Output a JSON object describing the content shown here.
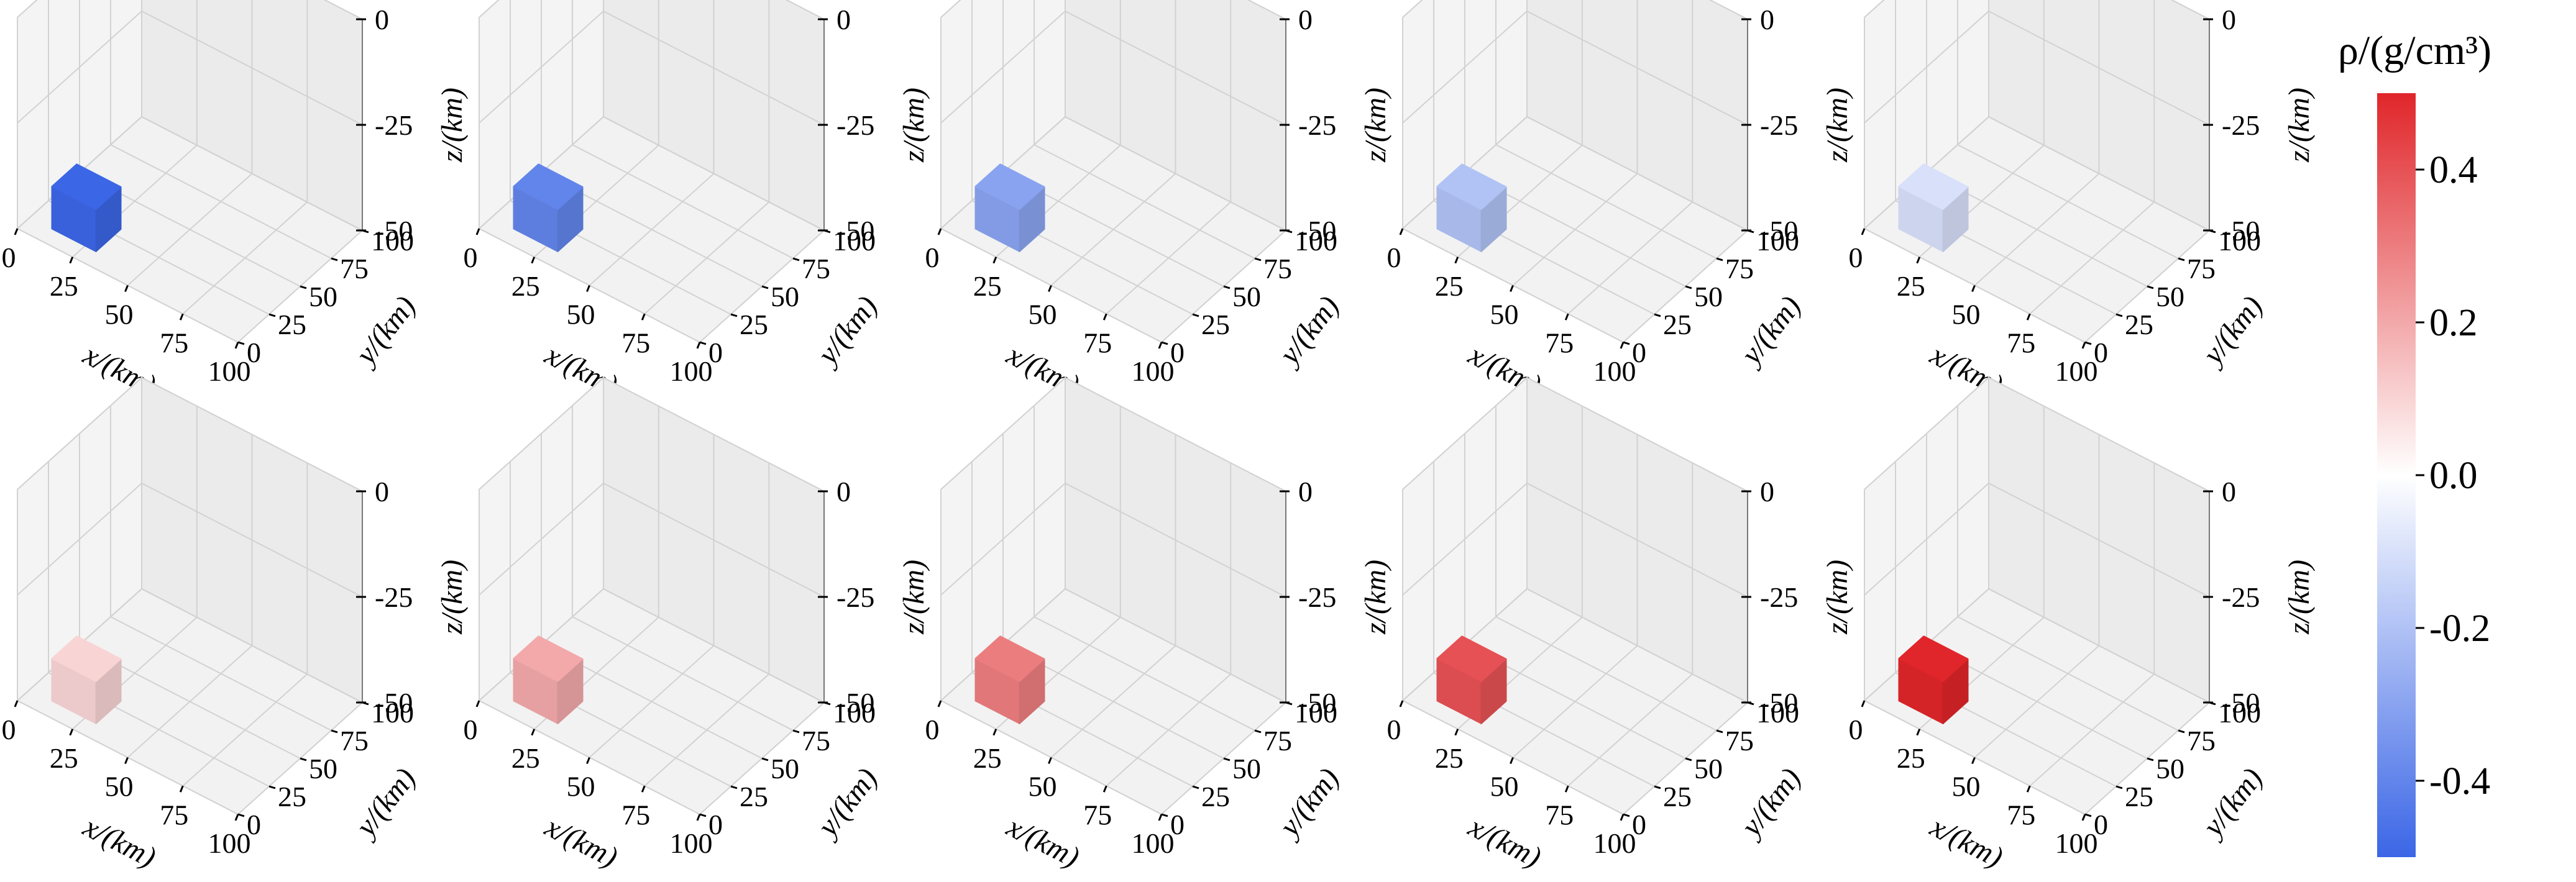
{
  "chart_data": {
    "type": "3d-voxel-panels",
    "description_note": "10 panels of a single cubic density block; same geometry, varying density value",
    "axes": {
      "xlabel": "x/(km)",
      "ylabel": "y/(km)",
      "zlabel": "z/(km)",
      "x_ticks": [
        "0",
        "25",
        "50",
        "75",
        "100"
      ],
      "y_ticks": [
        "0",
        "25",
        "50",
        "75",
        "100"
      ],
      "z_ticks": [
        "0",
        "-25",
        "-50"
      ],
      "xlim": [
        0,
        100
      ],
      "ylim": [
        0,
        100
      ],
      "zlim": [
        -50,
        0
      ]
    },
    "block": {
      "x": [
        10,
        30
      ],
      "y": [
        10,
        30
      ],
      "z": [
        -50,
        -40
      ]
    },
    "panels": [
      {
        "row": 1,
        "col": 1,
        "density": -0.5
      },
      {
        "row": 1,
        "col": 2,
        "density": -0.4
      },
      {
        "row": 1,
        "col": 3,
        "density": -0.3
      },
      {
        "row": 1,
        "col": 4,
        "density": -0.2
      },
      {
        "row": 1,
        "col": 5,
        "density": -0.1
      },
      {
        "row": 2,
        "col": 1,
        "density": 0.1
      },
      {
        "row": 2,
        "col": 2,
        "density": 0.2
      },
      {
        "row": 2,
        "col": 3,
        "density": 0.3
      },
      {
        "row": 2,
        "col": 4,
        "density": 0.4
      },
      {
        "row": 2,
        "col": 5,
        "density": 0.5
      }
    ],
    "colorbar": {
      "title": "ρ/(g/cm³)",
      "colormap": "coolwarm",
      "range": [
        -0.5,
        0.5
      ],
      "ticks": [
        {
          "value": 0.4,
          "label": "0.4"
        },
        {
          "value": 0.2,
          "label": "0.2"
        },
        {
          "value": 0.0,
          "label": "0.0"
        },
        {
          "value": -0.2,
          "label": "-0.2"
        },
        {
          "value": -0.4,
          "label": "-0.4"
        }
      ],
      "color_low": "#3b66e6",
      "color_mid": "#ffffff",
      "color_high": "#e0262a"
    }
  }
}
